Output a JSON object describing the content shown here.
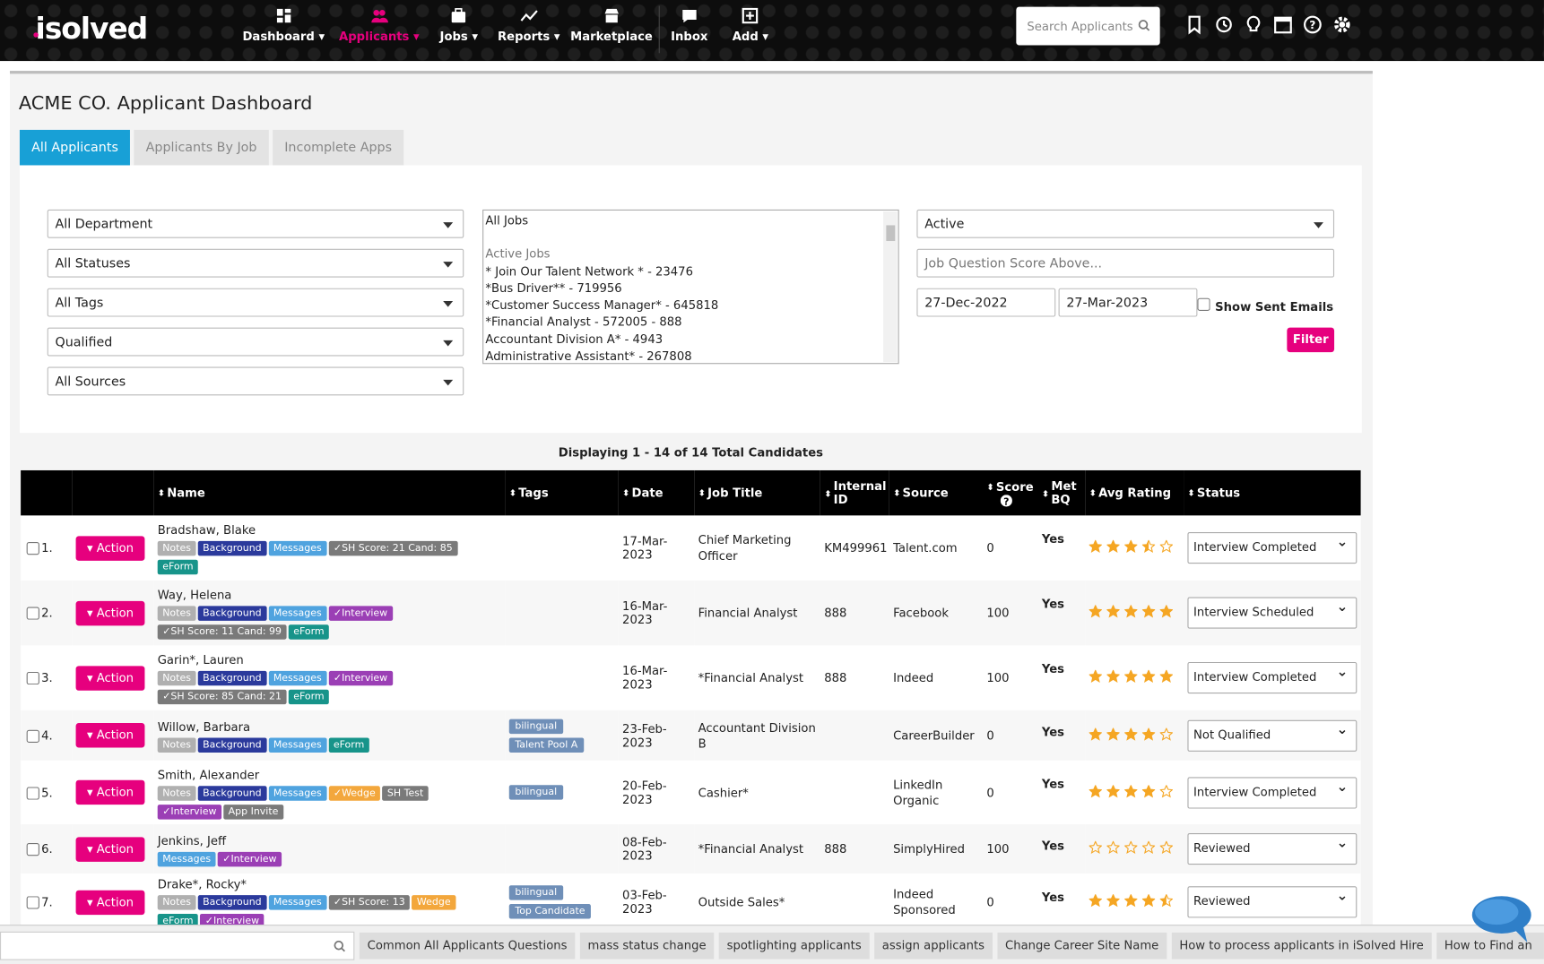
{
  "nav": {
    "logo": "isolved",
    "items": [
      {
        "label": "Dashboard",
        "dropdown": true
      },
      {
        "label": "Applicants",
        "dropdown": true,
        "active": true
      },
      {
        "label": "Jobs",
        "dropdown": true
      },
      {
        "label": "Reports",
        "dropdown": true
      },
      {
        "label": "Marketplace"
      },
      {
        "label": "Inbox"
      },
      {
        "label": "Add",
        "dropdown": true
      }
    ],
    "search_placeholder": "Search Applicants"
  },
  "page": {
    "title": "ACME CO. Applicant Dashboard",
    "tabs": [
      "All Applicants",
      "Applicants By Job",
      "Incomplete Apps"
    ]
  },
  "filters": {
    "left": [
      "All Department",
      "All Statuses",
      "All Tags",
      "Qualified",
      "All Sources"
    ],
    "jobs_heading": "All Jobs",
    "jobs_group": "Active Jobs",
    "jobs": [
      "* Join Our Talent Network * - 23476",
      "*Bus Driver** - 719956",
      "*Customer Success Manager* - 645818",
      "*Financial Analyst - 572005 - 888",
      "Accountant Division A* - 4943",
      "Administrative Assistant* - 267808"
    ],
    "status": "Active",
    "score_placeholder": "Job Question Score Above...",
    "date_from": "27-Dec-2022",
    "date_to": "27-Mar-2023",
    "show_sent": "Show Sent Emails",
    "filter_button": "Filter"
  },
  "table": {
    "summary": "Displaying 1 - 14 of 14 Total Candidates",
    "columns": [
      "Name",
      "Tags",
      "Date",
      "Job Title",
      "Internal ID",
      "Source",
      "Score",
      "Met BQ",
      "Avg Rating",
      "Status"
    ],
    "action_label": "Action",
    "rows": [
      {
        "index": "1.",
        "name": "Bradshaw, Blake",
        "badges": [
          {
            "label": "Notes",
            "color": "#b0b0b0"
          },
          {
            "label": "Background",
            "color": "#2b3a9c"
          },
          {
            "label": "Messages",
            "color": "#4fa3df"
          },
          {
            "label": "✓SH Score: 21 Cand: 85",
            "color": "#7a7a7a"
          },
          {
            "label": "eForm",
            "color": "#17948a"
          }
        ],
        "tags": [],
        "date": "17-Mar-2023",
        "job": "Chief Marketing Officer",
        "internal_id": "KM499961",
        "source": "Talent.com",
        "score": 0,
        "met_bq": "Yes",
        "rating": 3.5,
        "status": "Interview Completed"
      },
      {
        "index": "2.",
        "name": "Way, Helena",
        "badges": [
          {
            "label": "Notes",
            "color": "#b0b0b0"
          },
          {
            "label": "Background",
            "color": "#2b3a9c"
          },
          {
            "label": "Messages",
            "color": "#4fa3df"
          },
          {
            "label": "✓Interview",
            "color": "#9b3fb5"
          },
          {
            "label": "✓SH Score: 11 Cand: 99",
            "color": "#7a7a7a"
          },
          {
            "label": "eForm",
            "color": "#17948a"
          }
        ],
        "tags": [],
        "date": "16-Mar-2023",
        "job": "Financial Analyst",
        "internal_id": "888",
        "source": "Facebook",
        "score": 100,
        "met_bq": "Yes",
        "rating": 5,
        "status": "Interview Scheduled"
      },
      {
        "index": "3.",
        "name": "Garin*, Lauren",
        "badges": [
          {
            "label": "Notes",
            "color": "#b0b0b0"
          },
          {
            "label": "Background",
            "color": "#2b3a9c"
          },
          {
            "label": "Messages",
            "color": "#4fa3df"
          },
          {
            "label": "✓Interview",
            "color": "#9b3fb5"
          },
          {
            "label": "✓SH Score: 85 Cand: 21",
            "color": "#7a7a7a"
          },
          {
            "label": "eForm",
            "color": "#17948a"
          }
        ],
        "tags": [],
        "date": "16-Mar-2023",
        "job": "*Financial Analyst",
        "internal_id": "888",
        "source": "Indeed",
        "score": 100,
        "met_bq": "Yes",
        "rating": 5,
        "status": "Interview Completed"
      },
      {
        "index": "4.",
        "name": "Willow, Barbara",
        "badges": [
          {
            "label": "Notes",
            "color": "#b0b0b0"
          },
          {
            "label": "Background",
            "color": "#2b3a9c"
          },
          {
            "label": "Messages",
            "color": "#4fa3df"
          },
          {
            "label": "eForm",
            "color": "#17948a"
          }
        ],
        "tags": [
          "bilingual",
          "Talent Pool A"
        ],
        "date": "23-Feb-2023",
        "job": "Accountant Division B",
        "source": "CareerBuilder",
        "score": 0,
        "met_bq": "Yes",
        "rating": 4,
        "status": "Not Qualified"
      },
      {
        "index": "5.",
        "name": "Smith, Alexander",
        "badges": [
          {
            "label": "Notes",
            "color": "#b0b0b0"
          },
          {
            "label": "Background",
            "color": "#2b3a9c"
          },
          {
            "label": "Messages",
            "color": "#4fa3df"
          },
          {
            "label": "✓Wedge",
            "color": "#f3a73c"
          },
          {
            "label": "SH Test",
            "color": "#7a7a7a"
          },
          {
            "label": "✓Interview",
            "color": "#9b3fb5"
          },
          {
            "label": "App Invite",
            "color": "#7a7a7a"
          }
        ],
        "tags": [
          "bilingual"
        ],
        "date": "20-Feb-2023",
        "job": "Cashier*",
        "source": "LinkedIn Organic",
        "score": 0,
        "met_bq": "Yes",
        "rating": 4,
        "status": "Interview Completed"
      },
      {
        "index": "6.",
        "name": "Jenkins, Jeff",
        "badges": [
          {
            "label": "Messages",
            "color": "#4fa3df"
          },
          {
            "label": "✓Interview",
            "color": "#9b3fb5"
          }
        ],
        "tags": [],
        "date": "08-Feb-2023",
        "job": "*Financial Analyst",
        "internal_id": "888",
        "source": "SimplyHired",
        "score": 100,
        "met_bq": "Yes",
        "rating": 0,
        "status": "Reviewed"
      },
      {
        "index": "7.",
        "name": "Drake*, Rocky*",
        "badges": [
          {
            "label": "Notes",
            "color": "#b0b0b0"
          },
          {
            "label": "Background",
            "color": "#2b3a9c"
          },
          {
            "label": "Messages",
            "color": "#4fa3df"
          },
          {
            "label": "✓SH Score: 13",
            "color": "#7a7a7a"
          },
          {
            "label": "Wedge",
            "color": "#f3a73c"
          },
          {
            "label": "eForm",
            "color": "#17948a"
          },
          {
            "label": "✓Interview",
            "color": "#9b3fb5"
          }
        ],
        "tags": [
          "bilingual",
          "Top Candidate"
        ],
        "date": "03-Feb-2023",
        "job": "Outside Sales*",
        "source": "Indeed Sponsored",
        "score": 0,
        "met_bq": "Yes",
        "rating": 4.5,
        "status": "Reviewed"
      }
    ]
  },
  "help_links": [
    "Common All Applicants Questions",
    "mass status change",
    "spotlighting applicants",
    "assign applicants",
    "Change Career Site Name",
    "How to process applicants in iSolved Hire",
    "How to Find an Applicant"
  ]
}
